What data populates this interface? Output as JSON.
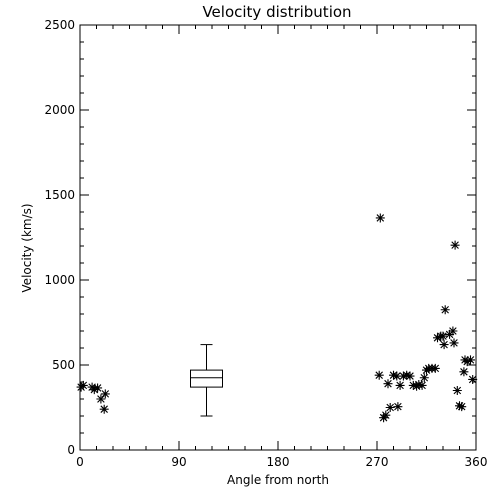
{
  "chart_data": {
    "type": "scatter",
    "title": "Velocity distribution",
    "xlabel": "Angle from north",
    "ylabel": "Velocity (km/s)",
    "xlim": [
      0,
      360
    ],
    "ylim": [
      0,
      2500
    ],
    "xticks": [
      0,
      90,
      180,
      270,
      360
    ],
    "yticks": [
      0,
      500,
      1000,
      1500,
      2000,
      2500
    ],
    "grid": false,
    "marker": "asterisk",
    "points": [
      [
        1,
        370
      ],
      [
        3,
        380
      ],
      [
        11,
        370
      ],
      [
        13,
        355
      ],
      [
        16,
        365
      ],
      [
        19,
        300
      ],
      [
        22,
        240
      ],
      [
        23,
        330
      ],
      [
        272,
        440
      ],
      [
        273,
        1365
      ],
      [
        276,
        190
      ],
      [
        278,
        205
      ],
      [
        280,
        390
      ],
      [
        282,
        250
      ],
      [
        285,
        440
      ],
      [
        288,
        435
      ],
      [
        289,
        255
      ],
      [
        291,
        380
      ],
      [
        294,
        435
      ],
      [
        297,
        440
      ],
      [
        300,
        435
      ],
      [
        303,
        380
      ],
      [
        306,
        375
      ],
      [
        308,
        385
      ],
      [
        311,
        380
      ],
      [
        313,
        425
      ],
      [
        315,
        470
      ],
      [
        317,
        480
      ],
      [
        320,
        480
      ],
      [
        323,
        480
      ],
      [
        325,
        660
      ],
      [
        328,
        670
      ],
      [
        330,
        670
      ],
      [
        331,
        620
      ],
      [
        332,
        825
      ],
      [
        336,
        680
      ],
      [
        339,
        700
      ],
      [
        340,
        630
      ],
      [
        341,
        1205
      ],
      [
        343,
        350
      ],
      [
        345,
        260
      ],
      [
        347,
        255
      ],
      [
        349,
        460
      ],
      [
        350,
        530
      ],
      [
        352,
        520
      ],
      [
        355,
        530
      ],
      [
        357,
        415
      ]
    ],
    "boxplot": {
      "x": 115,
      "min": 200,
      "q1": 370,
      "median": 425,
      "q3": 470,
      "max": 620
    }
  }
}
